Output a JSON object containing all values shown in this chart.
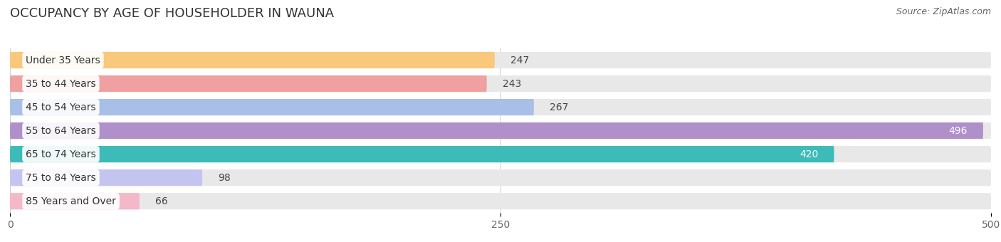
{
  "title": "OCCUPANCY BY AGE OF HOUSEHOLDER IN WAUNA",
  "source": "Source: ZipAtlas.com",
  "categories": [
    "Under 35 Years",
    "35 to 44 Years",
    "45 to 54 Years",
    "55 to 64 Years",
    "65 to 74 Years",
    "75 to 84 Years",
    "85 Years and Over"
  ],
  "values": [
    247,
    243,
    267,
    496,
    420,
    98,
    66
  ],
  "bar_colors": [
    "#f9c87c",
    "#f0a0a0",
    "#a8bfe8",
    "#b090c8",
    "#3dbbb8",
    "#c4c4f0",
    "#f5b8c8"
  ],
  "bar_bg_color": "#e8e8e8",
  "xlim": [
    0,
    500
  ],
  "xticks": [
    0,
    250,
    500
  ],
  "title_fontsize": 13,
  "label_fontsize": 10,
  "value_fontsize": 10,
  "background_color": "#ffffff",
  "figwidth": 14.06,
  "figheight": 3.4,
  "dpi": 100
}
